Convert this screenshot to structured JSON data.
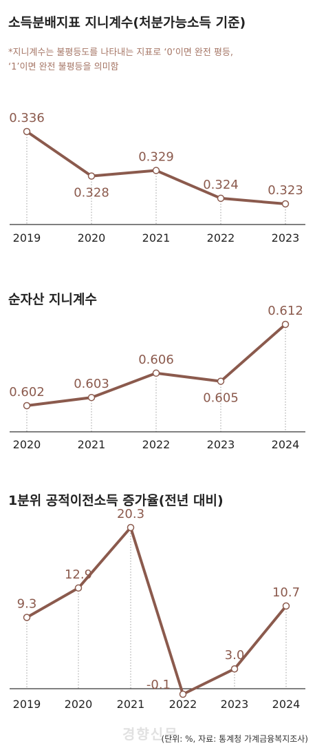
{
  "charts": [
    {
      "title": "소득분배지표 지니계수(처분가능소득 기준)",
      "note_lines": [
        "*지니계수는 불평등도를 나타내는 지표로 ‘0’이면 완전 평등,",
        " ‘1’이면 완전 불평등을 의미함"
      ]
    },
    {
      "title": "순자산 지니계수"
    },
    {
      "title": "1분위 공적이전소득 증가율(전년 대비)"
    }
  ],
  "source": "(단위: %, 자료: 통계청 가계금융복지조사)",
  "watermark": "경향신문",
  "colors": {
    "line": "#8b5a4d",
    "label": "#8b5a4d",
    "axis": "#333333"
  },
  "chart_data": [
    {
      "type": "line",
      "title": "소득분배지표 지니계수(처분가능소득 기준)",
      "categories": [
        "2019",
        "2020",
        "2021",
        "2022",
        "2023"
      ],
      "values": [
        0.336,
        0.328,
        0.329,
        0.324,
        0.323
      ],
      "labels": [
        "0.336",
        "0.328",
        "0.329",
        "0.324",
        "0.323"
      ],
      "label_pos": [
        "above",
        "below",
        "above",
        "above",
        "above"
      ]
    },
    {
      "type": "line",
      "title": "순자산 지니계수",
      "categories": [
        "2020",
        "2021",
        "2022",
        "2023",
        "2024"
      ],
      "values": [
        0.602,
        0.603,
        0.606,
        0.605,
        0.612
      ],
      "labels": [
        "0.602",
        "0.603",
        "0.606",
        "0.605",
        "0.612"
      ],
      "label_pos": [
        "above",
        "above",
        "above",
        "below",
        "above"
      ]
    },
    {
      "type": "line",
      "title": "1분위 공적이전소득 증가율(전년 대비)",
      "categories": [
        "2019",
        "2020",
        "2021",
        "2022",
        "2023",
        "2024"
      ],
      "values": [
        9.3,
        12.9,
        20.3,
        -0.1,
        3.0,
        10.7
      ],
      "labels": [
        "9.3",
        "12.9",
        "20.3",
        "-0.1",
        "3.0",
        "10.7"
      ],
      "label_pos": [
        "above",
        "above",
        "above",
        "left",
        "above",
        "above"
      ]
    }
  ]
}
